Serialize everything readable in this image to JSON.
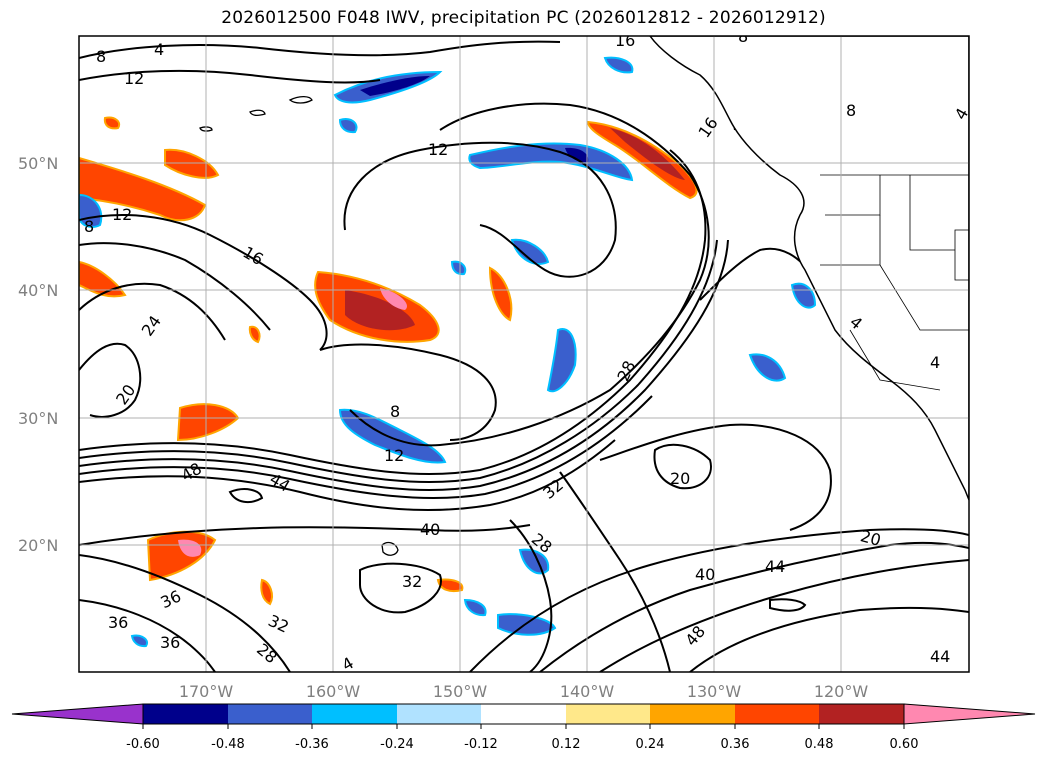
{
  "title": "2026012500 F048 IWV, precipitation PC (2026012812 - 2026012912)",
  "lat_labels": [
    "50°N",
    "40°N",
    "30°N",
    "20°N"
  ],
  "lon_labels": [
    "170°W",
    "160°W",
    "150°W",
    "140°W",
    "130°W",
    "120°W"
  ],
  "contour_labels": [
    "8",
    "4",
    "12",
    "16",
    "12",
    "8",
    "12",
    "16",
    "24",
    "20",
    "48",
    "44",
    "12",
    "8",
    "28",
    "32",
    "40",
    "20",
    "32",
    "36",
    "36",
    "32",
    "28",
    "4",
    "36",
    "40",
    "44",
    "48",
    "20",
    "44",
    "28",
    "4",
    "4",
    "8",
    "16",
    "8",
    "4"
  ],
  "colorbar": {
    "ticks": [
      "-0.60",
      "-0.48",
      "-0.36",
      "-0.24",
      "-0.12",
      "0.12",
      "0.24",
      "0.36",
      "0.48",
      "0.60"
    ],
    "colors": [
      "#9932cc",
      "#00008b",
      "#3a5fcd",
      "#00bfff",
      "#b0e2ff",
      "#ffffff",
      "#ffe88a",
      "#ffa500",
      "#ff4500",
      "#b22222",
      "#ff88b0"
    ]
  },
  "colors": {
    "land_edge": "#000000",
    "grid": "#b0b0b0",
    "neg_dark": "#00008b",
    "neg_mid": "#3a5fcd",
    "neg_light": "#00bfff",
    "pos_light": "#ffa500",
    "pos_mid": "#ff4500",
    "pos_dark": "#b22222",
    "pos_max": "#ff88b0"
  }
}
